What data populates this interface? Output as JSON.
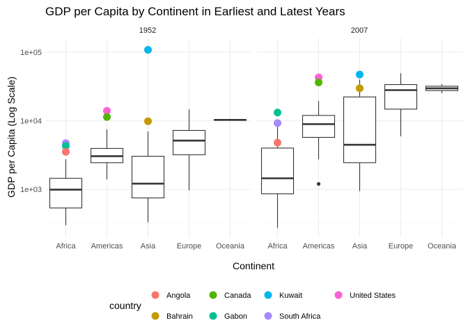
{
  "chart_data": {
    "type": "boxplot",
    "title": "GDP per Capita by Continent in Earliest and Latest Years",
    "xlabel": "Continent",
    "ylabel": "GDP per Capita (Log Scale)",
    "y_scale": "log10",
    "ylim": [
      200,
      160000
    ],
    "y_ticks": [
      {
        "value": 1000,
        "label": "1e+03"
      },
      {
        "value": 10000,
        "label": "1e+04"
      },
      {
        "value": 100000,
        "label": "1e+05"
      }
    ],
    "categories": [
      "Africa",
      "Americas",
      "Asia",
      "Europe",
      "Oceania"
    ],
    "grid": true,
    "legend": {
      "title": "country",
      "placement": "bottom",
      "entries": [
        {
          "name": "Angola",
          "color": "#F8766D"
        },
        {
          "name": "Bahrain",
          "color": "#C49A00"
        },
        {
          "name": "Canada",
          "color": "#53B400"
        },
        {
          "name": "Gabon",
          "color": "#00C094"
        },
        {
          "name": "Kuwait",
          "color": "#00B6EB"
        },
        {
          "name": "South Africa",
          "color": "#A58AFF"
        },
        {
          "name": "United States",
          "color": "#FB61D7"
        }
      ]
    },
    "panels": [
      {
        "label": "1952",
        "boxes": [
          {
            "category": "Africa",
            "whisker_low": 300,
            "q1": 535,
            "median": 990,
            "q3": 1450,
            "whisker_high": 2750
          },
          {
            "category": "Americas",
            "whisker_low": 1400,
            "q1": 2450,
            "median": 3050,
            "q3": 3950,
            "whisker_high": 7500
          },
          {
            "category": "Asia",
            "whisker_low": 330,
            "q1": 750,
            "median": 1210,
            "q3": 3040,
            "whisker_high": 7000
          },
          {
            "category": "Europe",
            "whisker_low": 970,
            "q1": 3200,
            "median": 5140,
            "q3": 7240,
            "whisker_high": 14700
          },
          {
            "category": "Oceania",
            "whisker_low": 10040,
            "q1": 10220,
            "median": 10300,
            "q3": 10380,
            "whisker_high": 10560
          }
        ],
        "outliers": [],
        "highlights": [
          {
            "category": "Africa",
            "country": "South Africa",
            "value": 4725
          },
          {
            "category": "Africa",
            "country": "Gabon",
            "value": 4293
          },
          {
            "category": "Africa",
            "country": "Angola",
            "value": 3521
          },
          {
            "category": "Americas",
            "country": "United States",
            "value": 13990
          },
          {
            "category": "Americas",
            "country": "Canada",
            "value": 11367
          },
          {
            "category": "Asia",
            "country": "Kuwait",
            "value": 108382
          },
          {
            "category": "Asia",
            "country": "Bahrain",
            "value": 9867
          }
        ]
      },
      {
        "label": "2007",
        "boxes": [
          {
            "category": "Africa",
            "whisker_low": 275,
            "q1": 860,
            "median": 1450,
            "q3": 4000,
            "whisker_high": 8800
          },
          {
            "category": "Americas",
            "whisker_low": 2750,
            "q1": 5730,
            "median": 8950,
            "q3": 11980,
            "whisker_high": 19500
          },
          {
            "category": "Asia",
            "whisker_low": 945,
            "q1": 2450,
            "median": 4470,
            "q3": 22300,
            "whisker_high": 40000
          },
          {
            "category": "Europe",
            "whisker_low": 5940,
            "q1": 14800,
            "median": 28050,
            "q3": 33800,
            "whisker_high": 49300
          },
          {
            "category": "Oceania",
            "whisker_low": 25200,
            "q1": 27600,
            "median": 29800,
            "q3": 32000,
            "whisker_high": 34400
          }
        ],
        "outliers": [
          {
            "category": "Americas",
            "value": 1200
          }
        ],
        "highlights": [
          {
            "category": "Africa",
            "country": "Gabon",
            "value": 13206
          },
          {
            "category": "Africa",
            "country": "South Africa",
            "value": 9270
          },
          {
            "category": "Africa",
            "country": "Angola",
            "value": 4797
          },
          {
            "category": "Americas",
            "country": "United States",
            "value": 42952
          },
          {
            "category": "Americas",
            "country": "Canada",
            "value": 36319
          },
          {
            "category": "Asia",
            "country": "Kuwait",
            "value": 47307
          },
          {
            "category": "Asia",
            "country": "Bahrain",
            "value": 29796
          }
        ]
      }
    ]
  }
}
